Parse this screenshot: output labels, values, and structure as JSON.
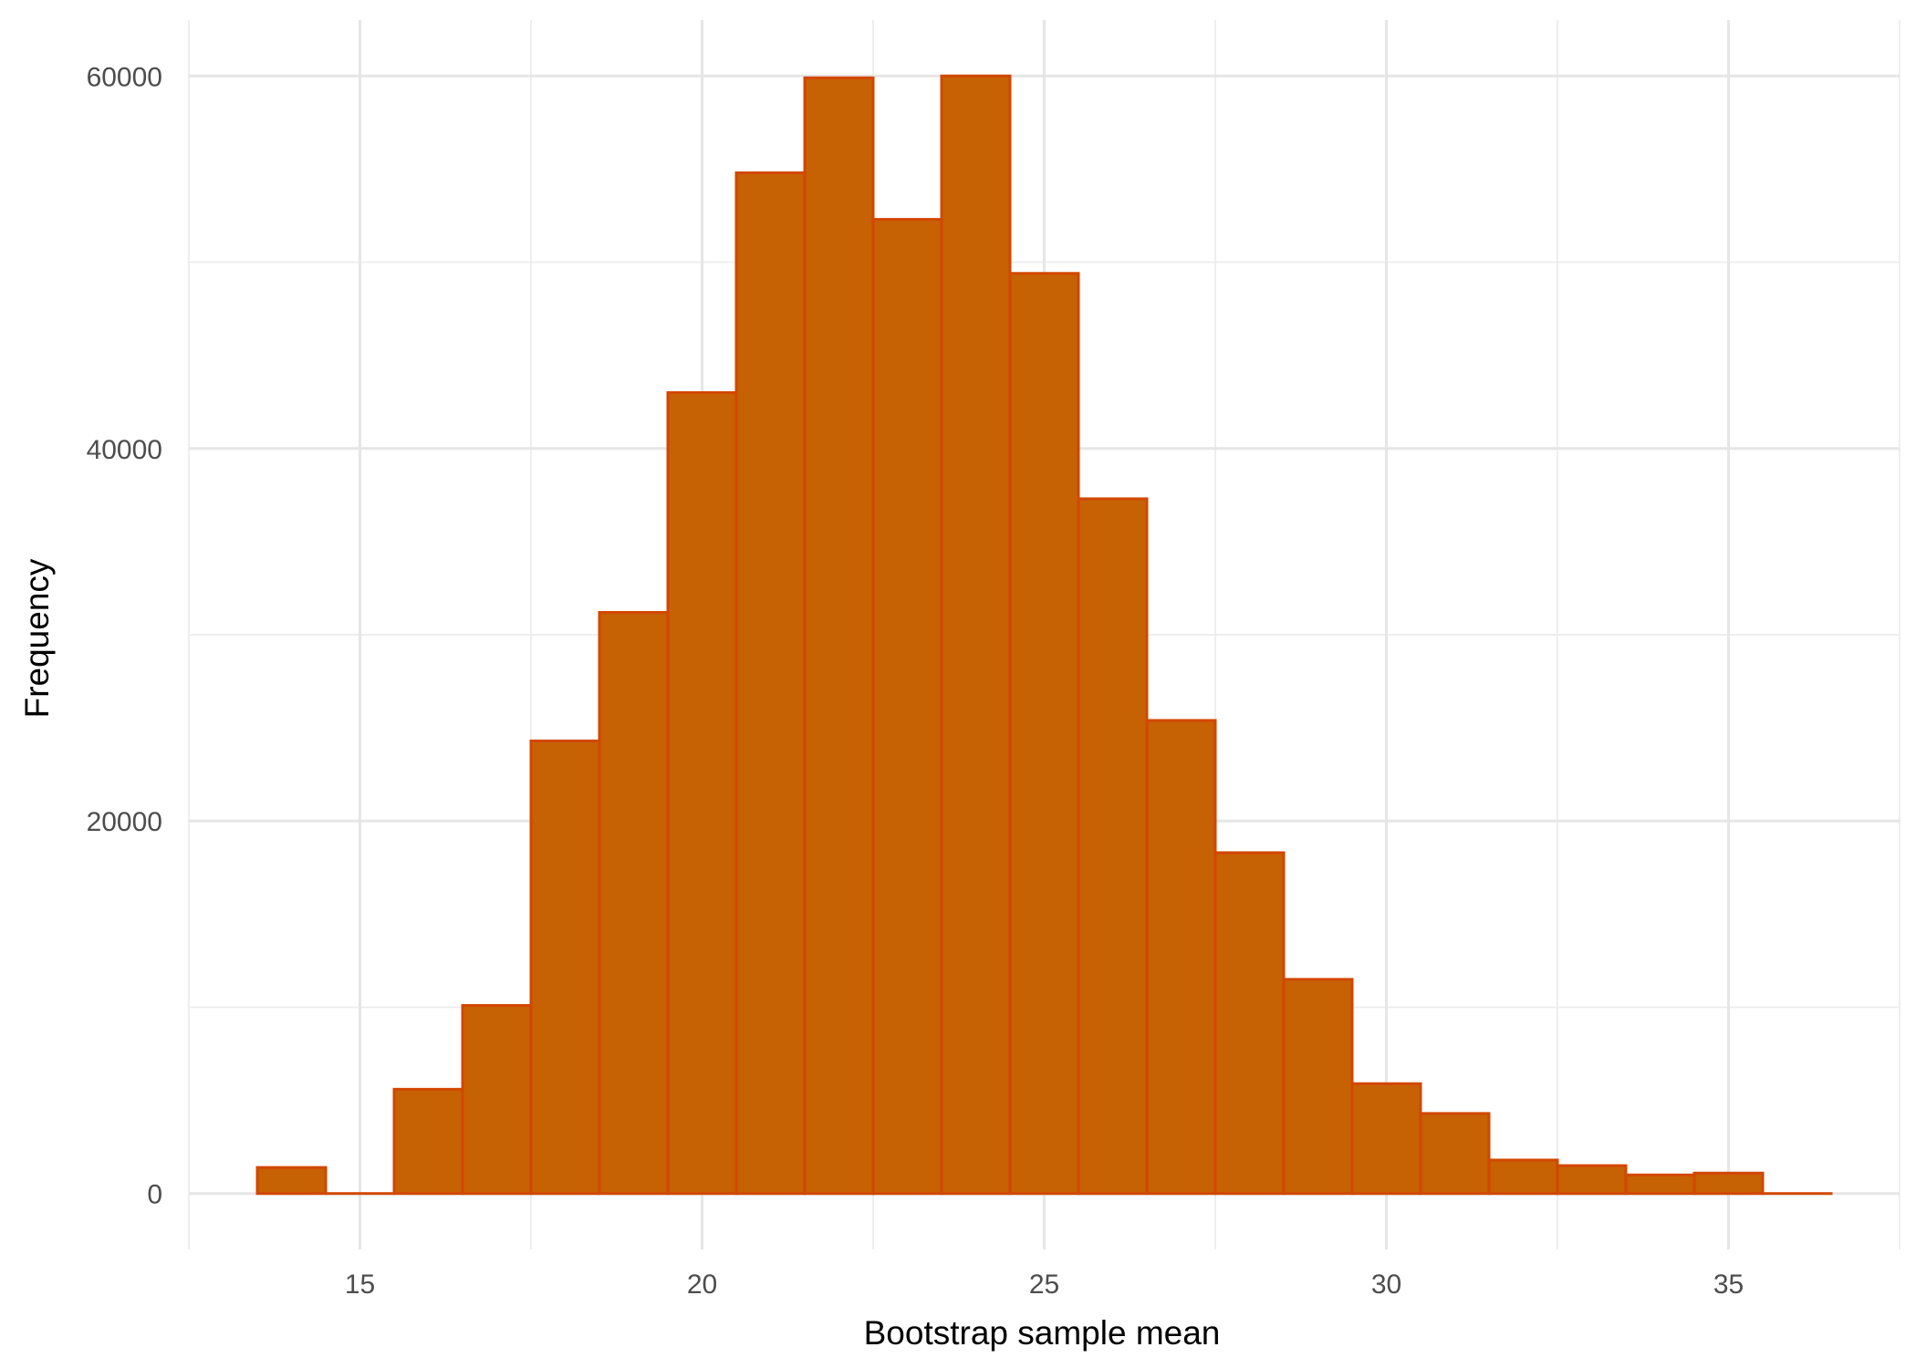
{
  "chart_data": {
    "type": "bar",
    "subtype": "histogram",
    "xlabel": "Bootstrap sample mean",
    "ylabel": "Frequency",
    "xlim": [
      12.5,
      37.5
    ],
    "ylim": [
      -3000,
      63000
    ],
    "x_ticks": [
      15,
      20,
      25,
      30,
      35
    ],
    "x_tick_labels": [
      "15",
      "20",
      "25",
      "30",
      "35"
    ],
    "y_ticks": [
      0,
      20000,
      40000,
      60000
    ],
    "y_tick_labels": [
      "0",
      "20000",
      "40000",
      "60000"
    ],
    "bin_width": 1,
    "bin_centers": [
      14,
      15,
      16,
      17,
      18,
      19,
      20,
      21,
      22,
      23,
      24,
      25,
      26,
      27,
      28,
      29,
      30,
      31,
      32,
      33,
      34,
      35,
      36
    ],
    "values": [
      1400,
      0,
      5600,
      10100,
      24300,
      31200,
      43000,
      54800,
      59900,
      52300,
      60000,
      49400,
      37300,
      25400,
      18300,
      11500,
      5900,
      4300,
      1800,
      1500,
      1000,
      1100,
      0
    ],
    "grid": true,
    "legend": "none",
    "fill_color": "#C66104",
    "stroke_color": "#D24700",
    "grid_color": "#E6E6E6",
    "tick_label_color": "#4D4D4D"
  }
}
